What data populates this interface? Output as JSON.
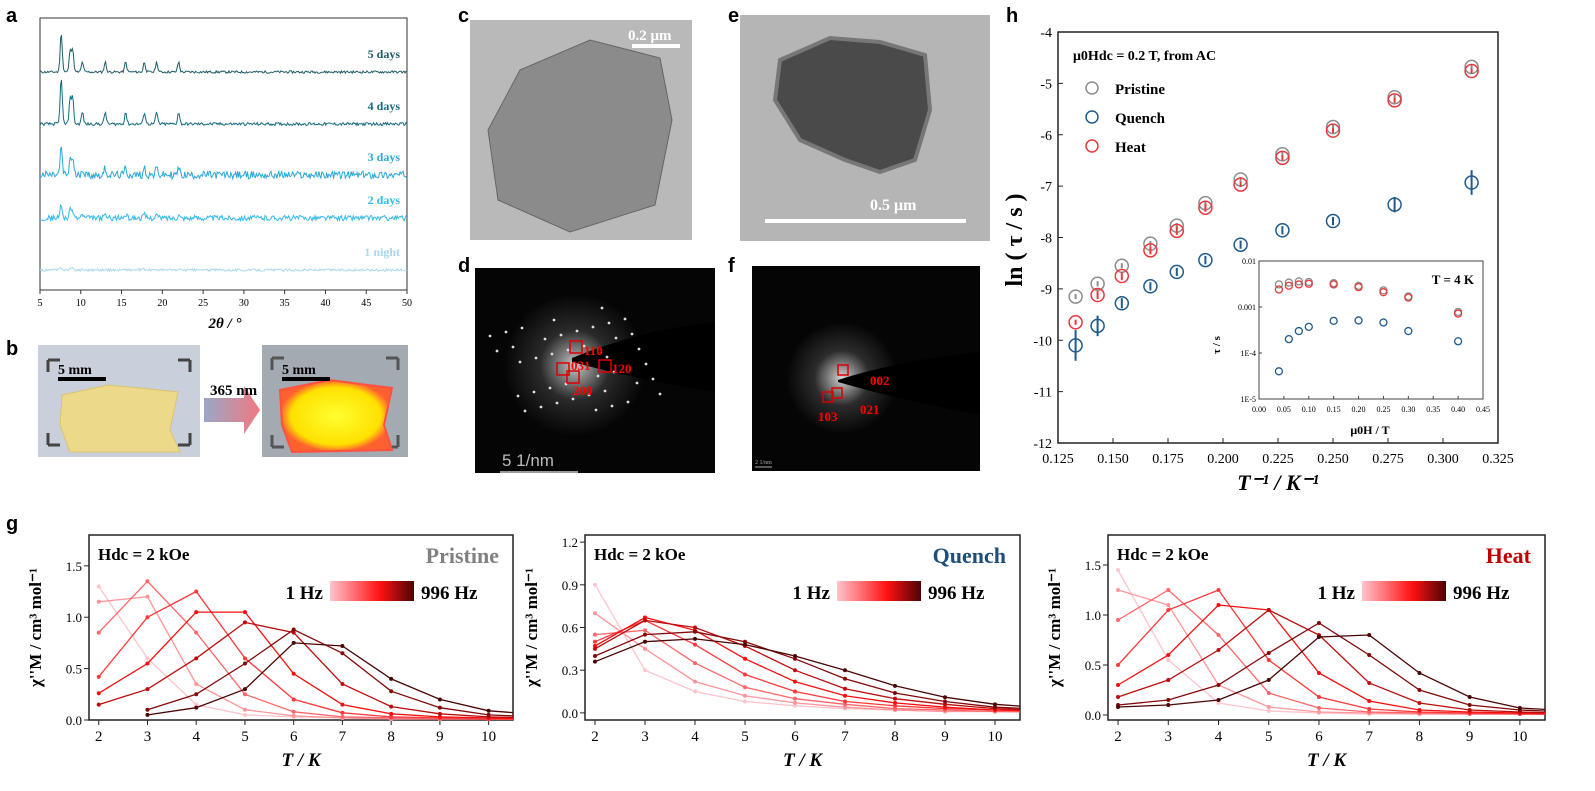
{
  "panels": {
    "a": "a",
    "b": "b",
    "c": "c",
    "d": "d",
    "e": "e",
    "f": "f",
    "g": "g",
    "h": "h"
  },
  "photos_b": {
    "scale_left": "5 mm",
    "scale_right": "5 mm",
    "arrow_label": "365 nm"
  },
  "tem": {
    "c_scale": "0.2 μm",
    "e_scale": "0.5 μm",
    "d_scale": "5 1/nm",
    "f_scale": "2 1/nm",
    "d_indices": [
      "110",
      "031",
      "120",
      "200"
    ],
    "f_indices": [
      "002",
      "021",
      "103"
    ]
  },
  "colors": {
    "pristine": "#8c8c8c",
    "quench": "#1f5a8c",
    "heat": "#e8383d",
    "freq_low": "#ffc4cc",
    "freq_mid": "#ff1010",
    "freq_high": "#4a0505"
  },
  "chart_data": [
    {
      "id": "a",
      "type": "line",
      "xlabel": "2θ / °",
      "xlim": [
        5,
        50
      ],
      "xticks": [
        "5",
        "10",
        "15",
        "20",
        "25",
        "30",
        "35",
        "40",
        "45",
        "50"
      ],
      "peaks_2theta": [
        7.6,
        8.7,
        9.0,
        10.2,
        13.0,
        15.5,
        17.8,
        19.3,
        22.0
      ],
      "series": [
        {
          "name": "5 days",
          "color": "#1e5c68",
          "relative_intensity": 1.0
        },
        {
          "name": "4 days",
          "color": "#176a80",
          "relative_intensity": 0.95
        },
        {
          "name": "3 days",
          "color": "#2aa8d8",
          "relative_intensity": 0.45
        },
        {
          "name": "2 days",
          "color": "#35b9ea",
          "relative_intensity": 0.3
        },
        {
          "name": "1 night",
          "color": "#a8d8ef",
          "relative_intensity": 0.15
        }
      ]
    },
    {
      "id": "h",
      "type": "scatter",
      "annotation": "μ0Hdc = 0.2 T, from AC",
      "xlabel": "T⁻¹ / K⁻¹",
      "ylabel": "ln ( τ / s )",
      "xlim": [
        0.125,
        0.325
      ],
      "ylim": [
        -12,
        -4
      ],
      "xticks": [
        "0.125",
        "0.150",
        "0.175",
        "0.200",
        "0.225",
        "0.250",
        "0.275",
        "0.300",
        "0.325"
      ],
      "yticks": [
        "-12",
        "-11",
        "-10",
        "-9",
        "-8",
        "-7",
        "-6",
        "-5",
        "-4"
      ],
      "legend": "top-left",
      "x": [
        0.133,
        0.143,
        0.154,
        0.167,
        0.179,
        0.192,
        0.208,
        0.227,
        0.25,
        0.278,
        0.313
      ],
      "series": [
        {
          "name": "Pristine",
          "color": "#8c8c8c",
          "values": [
            -9.15,
            -8.9,
            -8.55,
            -8.12,
            -7.77,
            -7.33,
            -6.87,
            -6.38,
            -5.85,
            -5.27,
            -4.68
          ],
          "err": [
            0.05,
            0.05,
            0.05,
            0.05,
            0.05,
            0.05,
            0.05,
            0.05,
            0.05,
            0.05,
            0.05
          ]
        },
        {
          "name": "Quench",
          "color": "#1f5a8c",
          "values": [
            -10.1,
            -9.72,
            -9.28,
            -8.95,
            -8.67,
            -8.44,
            -8.14,
            -7.86,
            -7.68,
            -7.36,
            -6.93
          ],
          "err": [
            0.3,
            0.2,
            0.1,
            0.08,
            0.08,
            0.08,
            0.08,
            0.08,
            0.08,
            0.15,
            0.24
          ]
        },
        {
          "name": "Heat",
          "color": "#e8383d",
          "values": [
            -9.65,
            -9.12,
            -8.75,
            -8.25,
            -7.87,
            -7.42,
            -6.97,
            -6.45,
            -5.92,
            -5.33,
            -4.76
          ],
          "err": [
            0.05,
            0.08,
            0.08,
            0.08,
            0.08,
            0.08,
            0.05,
            0.05,
            0.05,
            0.05,
            0.05
          ]
        }
      ],
      "inset": {
        "type": "scatter",
        "annotation": "T = 4 K",
        "xlabel": "μ0H / T",
        "ylabel": "τ / s",
        "xlim": [
          0,
          0.45
        ],
        "ylim": [
          1e-05,
          0.01
        ],
        "yscale": "log",
        "xticks": [
          "0.00",
          "0.05",
          "0.10",
          "0.15",
          "0.20",
          "0.25",
          "0.30",
          "0.35",
          "0.40",
          "0.45"
        ],
        "yticks": [
          "1E-5",
          "1E-4",
          "0.001",
          "0.01"
        ],
        "x": [
          0.04,
          0.06,
          0.08,
          0.1,
          0.15,
          0.2,
          0.25,
          0.3,
          0.4
        ],
        "series": [
          {
            "name": "Pristine",
            "color": "#8c8c8c",
            "values": [
              0.0031,
              0.0034,
              0.0036,
              0.0035,
              0.0033,
              0.0029,
              0.0023,
              0.0017,
              0.00078
            ]
          },
          {
            "name": "Heat",
            "color": "#e8383d",
            "values": [
              0.0024,
              0.0029,
              0.0031,
              0.0032,
              0.0031,
              0.0027,
              0.0021,
              0.0016,
              0.00072
            ]
          },
          {
            "name": "Quench",
            "color": "#1f5a8c",
            "values": [
              4e-05,
              0.0002,
              0.0003,
              0.00037,
              0.0005,
              0.00051,
              0.00046,
              0.0003,
              0.00018
            ]
          }
        ]
      }
    },
    {
      "id": "g-pristine",
      "type": "line",
      "title": "Pristine",
      "title_color": "#808080",
      "annotation": "Hdc = 2 kOe",
      "colorbar": {
        "low": "1 Hz",
        "high": "996 Hz"
      },
      "xlabel": "T / K",
      "ylabel": "χ''M / cm³ mol⁻¹",
      "xlim": [
        1.8,
        10.5
      ],
      "ylim": [
        0,
        1.8
      ],
      "xticks": [
        "2",
        "3",
        "4",
        "5",
        "6",
        "7",
        "8",
        "9",
        "10"
      ],
      "yticks": [
        "0.0",
        "0.5",
        "1.0",
        "1.5"
      ],
      "x": [
        2,
        3,
        4,
        5,
        6,
        7,
        8,
        9,
        10
      ],
      "series": [
        {
          "values": [
            1.3,
            0.6,
            0.15,
            0.05,
            0.03,
            0.02,
            0.01,
            0.01,
            0.01
          ]
        },
        {
          "values": [
            1.15,
            1.2,
            0.35,
            0.1,
            0.04,
            0.02,
            0.01,
            0.01,
            0.01
          ]
        },
        {
          "values": [
            0.85,
            1.35,
            0.85,
            0.25,
            0.08,
            0.03,
            0.02,
            0.01,
            0.01
          ]
        },
        {
          "values": [
            0.42,
            1.0,
            1.25,
            0.6,
            0.2,
            0.07,
            0.03,
            0.02,
            0.01
          ]
        },
        {
          "values": [
            0.26,
            0.55,
            1.05,
            1.05,
            0.45,
            0.15,
            0.06,
            0.03,
            0.02
          ]
        },
        {
          "values": [
            0.15,
            0.3,
            0.6,
            0.95,
            0.85,
            0.35,
            0.13,
            0.06,
            0.03
          ]
        },
        {
          "values": [
            null,
            0.1,
            0.25,
            0.55,
            0.88,
            0.65,
            0.28,
            0.12,
            0.05
          ]
        },
        {
          "values": [
            null,
            0.05,
            0.12,
            0.3,
            0.75,
            0.72,
            0.4,
            0.2,
            0.09
          ]
        }
      ]
    },
    {
      "id": "g-quench",
      "type": "line",
      "title": "Quench",
      "title_color": "#1f4e7a",
      "annotation": "Hdc = 2 kOe",
      "colorbar": {
        "low": "1 Hz",
        "high": "996 Hz"
      },
      "xlabel": "T / K",
      "ylabel": "χ''M / cm³ mol⁻¹",
      "xlim": [
        1.8,
        10.5
      ],
      "ylim": [
        -0.05,
        1.25
      ],
      "xticks": [
        "2",
        "3",
        "4",
        "5",
        "6",
        "7",
        "8",
        "9",
        "10"
      ],
      "yticks": [
        "0.0",
        "0.3",
        "0.6",
        "0.9",
        "1.2"
      ],
      "x": [
        2,
        3,
        4,
        5,
        6,
        7,
        8,
        9,
        10
      ],
      "series": [
        {
          "values": [
            0.9,
            0.3,
            0.15,
            0.08,
            0.05,
            0.03,
            0.02,
            0.01,
            0.01
          ]
        },
        {
          "values": [
            0.7,
            0.45,
            0.22,
            0.12,
            0.07,
            0.04,
            0.02,
            0.01,
            0.01
          ]
        },
        {
          "values": [
            0.55,
            0.58,
            0.35,
            0.18,
            0.1,
            0.06,
            0.03,
            0.02,
            0.01
          ]
        },
        {
          "values": [
            0.5,
            0.65,
            0.48,
            0.27,
            0.15,
            0.08,
            0.05,
            0.03,
            0.02
          ]
        },
        {
          "values": [
            0.47,
            0.67,
            0.58,
            0.38,
            0.22,
            0.12,
            0.07,
            0.04,
            0.02
          ]
        },
        {
          "values": [
            0.45,
            0.65,
            0.6,
            0.47,
            0.3,
            0.17,
            0.1,
            0.06,
            0.03
          ]
        },
        {
          "values": [
            0.4,
            0.55,
            0.57,
            0.5,
            0.38,
            0.24,
            0.14,
            0.08,
            0.04
          ]
        },
        {
          "values": [
            0.36,
            0.5,
            0.52,
            0.48,
            0.4,
            0.3,
            0.19,
            0.11,
            0.06
          ]
        }
      ]
    },
    {
      "id": "g-heat",
      "type": "line",
      "title": "Heat",
      "title_color": "#c00000",
      "annotation": "Hdc = 2 kOe",
      "colorbar": {
        "low": "1 Hz",
        "high": "996 Hz"
      },
      "xlabel": "T / K",
      "ylabel": "χ''M / cm³ mol⁻¹",
      "xlim": [
        1.8,
        10.5
      ],
      "ylim": [
        -0.05,
        1.8
      ],
      "xticks": [
        "2",
        "3",
        "4",
        "5",
        "6",
        "7",
        "8",
        "9",
        "10"
      ],
      "yticks": [
        "0.0",
        "0.5",
        "1.0",
        "1.5"
      ],
      "x": [
        2,
        3,
        4,
        5,
        6,
        7,
        8,
        9,
        10
      ],
      "series": [
        {
          "values": [
            1.45,
            0.55,
            0.12,
            0.04,
            0.02,
            0.01,
            0.01,
            0.01,
            0.01
          ]
        },
        {
          "values": [
            1.25,
            1.1,
            0.3,
            0.08,
            0.03,
            0.02,
            0.01,
            0.01,
            0.01
          ]
        },
        {
          "values": [
            0.95,
            1.25,
            0.8,
            0.22,
            0.07,
            0.03,
            0.02,
            0.01,
            0.01
          ]
        },
        {
          "values": [
            0.5,
            1.05,
            1.25,
            0.55,
            0.18,
            0.06,
            0.03,
            0.02,
            0.01
          ]
        },
        {
          "values": [
            0.3,
            0.6,
            1.1,
            1.05,
            0.42,
            0.14,
            0.05,
            0.03,
            0.02
          ]
        },
        {
          "values": [
            0.18,
            0.35,
            0.65,
            1.05,
            0.8,
            0.32,
            0.12,
            0.05,
            0.03
          ]
        },
        {
          "values": [
            0.1,
            0.15,
            0.3,
            0.62,
            0.92,
            0.6,
            0.25,
            0.1,
            0.05
          ]
        },
        {
          "values": [
            0.08,
            0.1,
            0.15,
            0.35,
            0.78,
            0.8,
            0.42,
            0.18,
            0.07
          ]
        }
      ]
    }
  ]
}
